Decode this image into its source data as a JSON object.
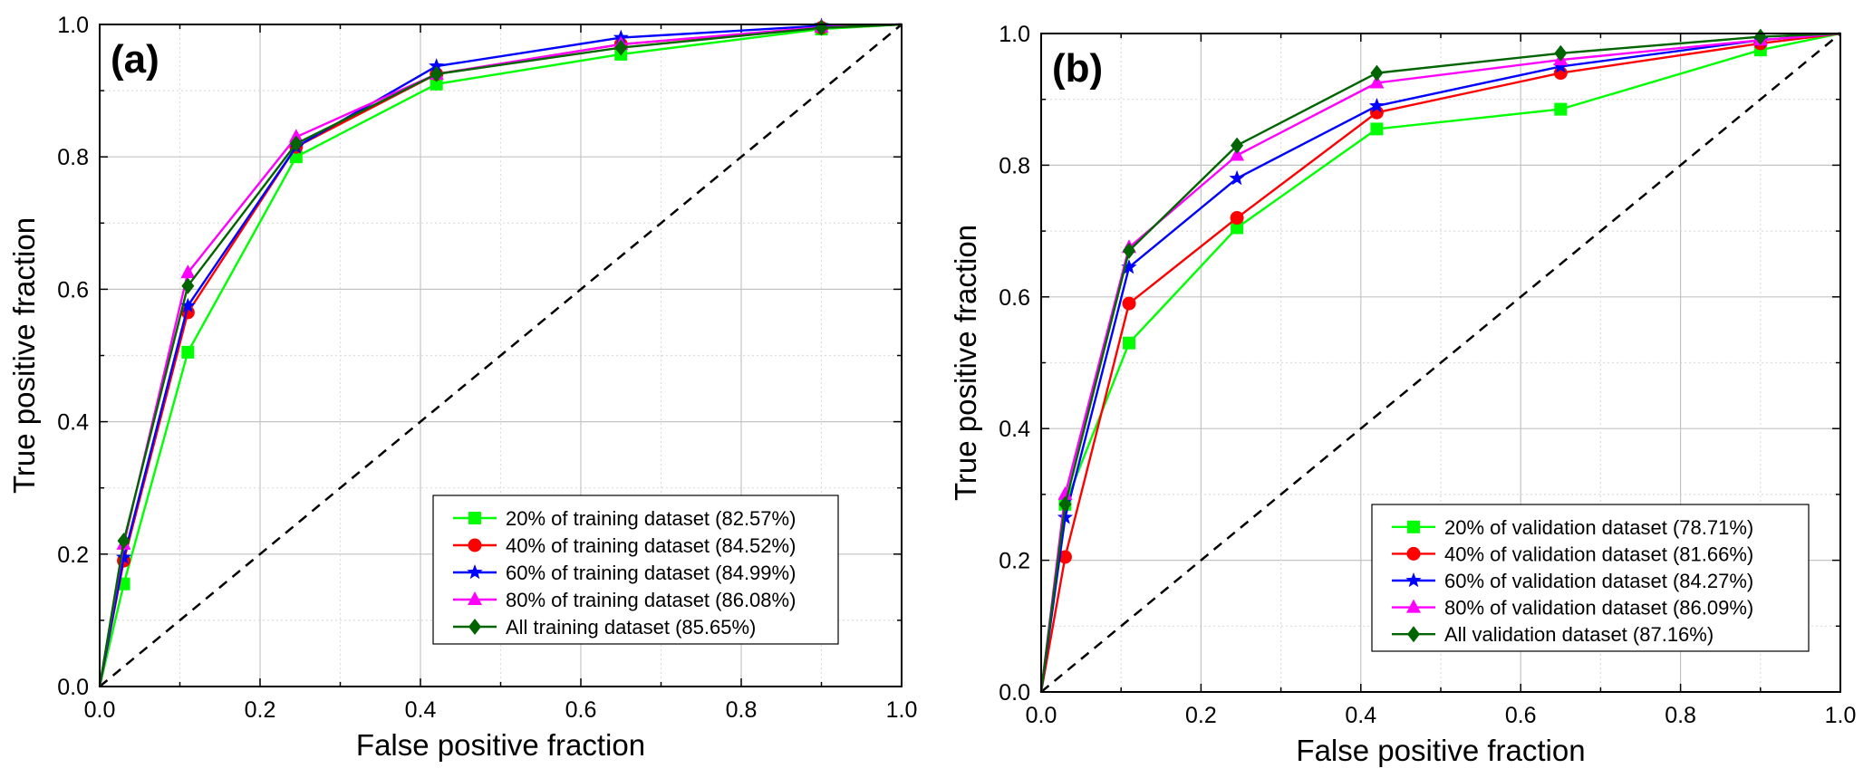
{
  "chart_data": [
    {
      "type": "line",
      "panel_label": "(a)",
      "xlabel": "False positive  fraction",
      "ylabel": "True positive  fraction",
      "xlim": [
        0.0,
        1.0
      ],
      "ylim": [
        0.0,
        1.0
      ],
      "xticks": [
        "0.0",
        "0.2",
        "0.4",
        "0.6",
        "0.8",
        "1.0"
      ],
      "yticks": [
        "0.0",
        "0.2",
        "0.4",
        "0.6",
        "0.8",
        "1.0"
      ],
      "grid": true,
      "legend_position": "bottom-right",
      "reference_line": {
        "name": "random classifier",
        "style": "dashed",
        "x": [
          0,
          1
        ],
        "y": [
          0,
          1
        ]
      },
      "series": [
        {
          "name": "20% of training dataset (82.57%)",
          "color": "#00ff00",
          "marker": "square",
          "x": [
            0,
            0.03,
            0.11,
            0.245,
            0.42,
            0.65,
            0.9,
            1.0
          ],
          "y": [
            0,
            0.155,
            0.505,
            0.8,
            0.91,
            0.955,
            0.993,
            1.0
          ]
        },
        {
          "name": "40% of training dataset (84.52%)",
          "color": "#ff0000",
          "marker": "circle",
          "x": [
            0,
            0.03,
            0.11,
            0.245,
            0.42,
            0.65,
            0.9,
            1.0
          ],
          "y": [
            0,
            0.19,
            0.565,
            0.815,
            0.925,
            0.97,
            0.995,
            1.0
          ]
        },
        {
          "name": "60% of training dataset (84.99%)",
          "color": "#0000ff",
          "marker": "star",
          "x": [
            0,
            0.03,
            0.11,
            0.245,
            0.42,
            0.65,
            0.9,
            1.0
          ],
          "y": [
            0,
            0.195,
            0.575,
            0.815,
            0.937,
            0.98,
            0.998,
            1.0
          ]
        },
        {
          "name": "80% of training dataset (86.08%)",
          "color": "#ff00ff",
          "marker": "triangle",
          "x": [
            0,
            0.03,
            0.11,
            0.245,
            0.42,
            0.65,
            0.9,
            1.0
          ],
          "y": [
            0,
            0.215,
            0.625,
            0.83,
            0.925,
            0.97,
            0.996,
            1.0
          ]
        },
        {
          "name": "All training dataset (85.65%)",
          "color": "#006400",
          "marker": "diamond",
          "x": [
            0,
            0.03,
            0.11,
            0.245,
            0.42,
            0.65,
            0.9,
            1.0
          ],
          "y": [
            0,
            0.22,
            0.605,
            0.82,
            0.925,
            0.965,
            0.995,
            1.0
          ]
        }
      ]
    },
    {
      "type": "line",
      "panel_label": "(b)",
      "xlabel": "False positive  fraction",
      "ylabel": "True positive  fraction",
      "xlim": [
        0.0,
        1.0
      ],
      "ylim": [
        0.0,
        1.0
      ],
      "xticks": [
        "0.0",
        "0.2",
        "0.4",
        "0.6",
        "0.8",
        "1.0"
      ],
      "yticks": [
        "0.0",
        "0.2",
        "0.4",
        "0.6",
        "0.8",
        "1.0"
      ],
      "grid": true,
      "legend_position": "bottom-right",
      "reference_line": {
        "name": "random classifier",
        "style": "dashed",
        "x": [
          0,
          1
        ],
        "y": [
          0,
          1
        ]
      },
      "series": [
        {
          "name": "20% of validation dataset (78.71%)",
          "color": "#00ff00",
          "marker": "square",
          "x": [
            0,
            0.03,
            0.11,
            0.245,
            0.42,
            0.65,
            0.9,
            1.0
          ],
          "y": [
            0,
            0.285,
            0.53,
            0.705,
            0.855,
            0.885,
            0.975,
            1.0
          ]
        },
        {
          "name": "40% of validation dataset (81.66%)",
          "color": "#ff0000",
          "marker": "circle",
          "x": [
            0,
            0.03,
            0.11,
            0.245,
            0.42,
            0.65,
            0.9,
            1.0
          ],
          "y": [
            0,
            0.205,
            0.59,
            0.72,
            0.88,
            0.94,
            0.985,
            1.0
          ]
        },
        {
          "name": "60% of validation dataset (84.27%)",
          "color": "#0000ff",
          "marker": "star",
          "x": [
            0,
            0.03,
            0.11,
            0.245,
            0.42,
            0.65,
            0.9,
            1.0
          ],
          "y": [
            0,
            0.265,
            0.645,
            0.78,
            0.89,
            0.95,
            0.99,
            1.0
          ]
        },
        {
          "name": "80% of validation dataset (86.09%)",
          "color": "#ff00ff",
          "marker": "triangle",
          "x": [
            0,
            0.03,
            0.11,
            0.245,
            0.42,
            0.65,
            0.9,
            1.0
          ],
          "y": [
            0,
            0.3,
            0.675,
            0.815,
            0.925,
            0.96,
            0.99,
            1.0
          ]
        },
        {
          "name": "All validation dataset (87.16%)",
          "color": "#006400",
          "marker": "diamond",
          "x": [
            0,
            0.03,
            0.11,
            0.245,
            0.42,
            0.65,
            0.9,
            1.0
          ],
          "y": [
            0,
            0.285,
            0.67,
            0.83,
            0.94,
            0.97,
            0.995,
            1.0
          ]
        }
      ]
    }
  ]
}
